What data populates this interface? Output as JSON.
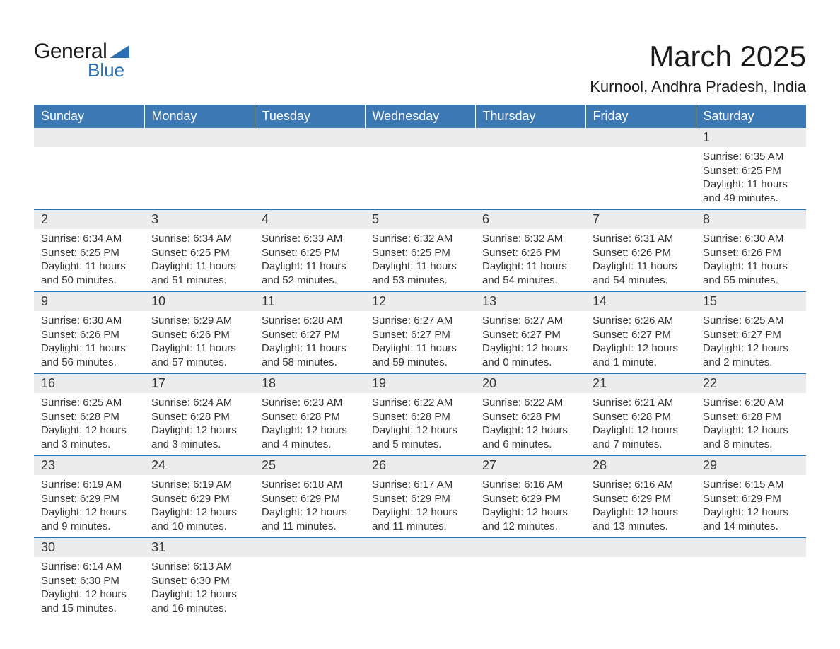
{
  "logo": {
    "general": "General",
    "blue": "Blue",
    "shape_color": "#2b6fb5"
  },
  "title": "March 2025",
  "location": "Kurnool, Andhra Pradesh, India",
  "colors": {
    "header_bg": "#3c78b4",
    "header_text": "#ffffff",
    "daynum_bg": "#ececec",
    "row_border": "#2b6fb5",
    "body_text": "#333333",
    "background": "#ffffff"
  },
  "fonts": {
    "title_size": 42,
    "location_size": 22,
    "header_size": 18,
    "daynum_size": 18,
    "cell_size": 15
  },
  "weekdays": [
    "Sunday",
    "Monday",
    "Tuesday",
    "Wednesday",
    "Thursday",
    "Friday",
    "Saturday"
  ],
  "weeks": [
    [
      null,
      null,
      null,
      null,
      null,
      null,
      {
        "n": "1",
        "sr": "Sunrise: 6:35 AM",
        "ss": "Sunset: 6:25 PM",
        "d1": "Daylight: 11 hours",
        "d2": "and 49 minutes."
      }
    ],
    [
      {
        "n": "2",
        "sr": "Sunrise: 6:34 AM",
        "ss": "Sunset: 6:25 PM",
        "d1": "Daylight: 11 hours",
        "d2": "and 50 minutes."
      },
      {
        "n": "3",
        "sr": "Sunrise: 6:34 AM",
        "ss": "Sunset: 6:25 PM",
        "d1": "Daylight: 11 hours",
        "d2": "and 51 minutes."
      },
      {
        "n": "4",
        "sr": "Sunrise: 6:33 AM",
        "ss": "Sunset: 6:25 PM",
        "d1": "Daylight: 11 hours",
        "d2": "and 52 minutes."
      },
      {
        "n": "5",
        "sr": "Sunrise: 6:32 AM",
        "ss": "Sunset: 6:25 PM",
        "d1": "Daylight: 11 hours",
        "d2": "and 53 minutes."
      },
      {
        "n": "6",
        "sr": "Sunrise: 6:32 AM",
        "ss": "Sunset: 6:26 PM",
        "d1": "Daylight: 11 hours",
        "d2": "and 54 minutes."
      },
      {
        "n": "7",
        "sr": "Sunrise: 6:31 AM",
        "ss": "Sunset: 6:26 PM",
        "d1": "Daylight: 11 hours",
        "d2": "and 54 minutes."
      },
      {
        "n": "8",
        "sr": "Sunrise: 6:30 AM",
        "ss": "Sunset: 6:26 PM",
        "d1": "Daylight: 11 hours",
        "d2": "and 55 minutes."
      }
    ],
    [
      {
        "n": "9",
        "sr": "Sunrise: 6:30 AM",
        "ss": "Sunset: 6:26 PM",
        "d1": "Daylight: 11 hours",
        "d2": "and 56 minutes."
      },
      {
        "n": "10",
        "sr": "Sunrise: 6:29 AM",
        "ss": "Sunset: 6:26 PM",
        "d1": "Daylight: 11 hours",
        "d2": "and 57 minutes."
      },
      {
        "n": "11",
        "sr": "Sunrise: 6:28 AM",
        "ss": "Sunset: 6:27 PM",
        "d1": "Daylight: 11 hours",
        "d2": "and 58 minutes."
      },
      {
        "n": "12",
        "sr": "Sunrise: 6:27 AM",
        "ss": "Sunset: 6:27 PM",
        "d1": "Daylight: 11 hours",
        "d2": "and 59 minutes."
      },
      {
        "n": "13",
        "sr": "Sunrise: 6:27 AM",
        "ss": "Sunset: 6:27 PM",
        "d1": "Daylight: 12 hours",
        "d2": "and 0 minutes."
      },
      {
        "n": "14",
        "sr": "Sunrise: 6:26 AM",
        "ss": "Sunset: 6:27 PM",
        "d1": "Daylight: 12 hours",
        "d2": "and 1 minute."
      },
      {
        "n": "15",
        "sr": "Sunrise: 6:25 AM",
        "ss": "Sunset: 6:27 PM",
        "d1": "Daylight: 12 hours",
        "d2": "and 2 minutes."
      }
    ],
    [
      {
        "n": "16",
        "sr": "Sunrise: 6:25 AM",
        "ss": "Sunset: 6:28 PM",
        "d1": "Daylight: 12 hours",
        "d2": "and 3 minutes."
      },
      {
        "n": "17",
        "sr": "Sunrise: 6:24 AM",
        "ss": "Sunset: 6:28 PM",
        "d1": "Daylight: 12 hours",
        "d2": "and 3 minutes."
      },
      {
        "n": "18",
        "sr": "Sunrise: 6:23 AM",
        "ss": "Sunset: 6:28 PM",
        "d1": "Daylight: 12 hours",
        "d2": "and 4 minutes."
      },
      {
        "n": "19",
        "sr": "Sunrise: 6:22 AM",
        "ss": "Sunset: 6:28 PM",
        "d1": "Daylight: 12 hours",
        "d2": "and 5 minutes."
      },
      {
        "n": "20",
        "sr": "Sunrise: 6:22 AM",
        "ss": "Sunset: 6:28 PM",
        "d1": "Daylight: 12 hours",
        "d2": "and 6 minutes."
      },
      {
        "n": "21",
        "sr": "Sunrise: 6:21 AM",
        "ss": "Sunset: 6:28 PM",
        "d1": "Daylight: 12 hours",
        "d2": "and 7 minutes."
      },
      {
        "n": "22",
        "sr": "Sunrise: 6:20 AM",
        "ss": "Sunset: 6:28 PM",
        "d1": "Daylight: 12 hours",
        "d2": "and 8 minutes."
      }
    ],
    [
      {
        "n": "23",
        "sr": "Sunrise: 6:19 AM",
        "ss": "Sunset: 6:29 PM",
        "d1": "Daylight: 12 hours",
        "d2": "and 9 minutes."
      },
      {
        "n": "24",
        "sr": "Sunrise: 6:19 AM",
        "ss": "Sunset: 6:29 PM",
        "d1": "Daylight: 12 hours",
        "d2": "and 10 minutes."
      },
      {
        "n": "25",
        "sr": "Sunrise: 6:18 AM",
        "ss": "Sunset: 6:29 PM",
        "d1": "Daylight: 12 hours",
        "d2": "and 11 minutes."
      },
      {
        "n": "26",
        "sr": "Sunrise: 6:17 AM",
        "ss": "Sunset: 6:29 PM",
        "d1": "Daylight: 12 hours",
        "d2": "and 11 minutes."
      },
      {
        "n": "27",
        "sr": "Sunrise: 6:16 AM",
        "ss": "Sunset: 6:29 PM",
        "d1": "Daylight: 12 hours",
        "d2": "and 12 minutes."
      },
      {
        "n": "28",
        "sr": "Sunrise: 6:16 AM",
        "ss": "Sunset: 6:29 PM",
        "d1": "Daylight: 12 hours",
        "d2": "and 13 minutes."
      },
      {
        "n": "29",
        "sr": "Sunrise: 6:15 AM",
        "ss": "Sunset: 6:29 PM",
        "d1": "Daylight: 12 hours",
        "d2": "and 14 minutes."
      }
    ],
    [
      {
        "n": "30",
        "sr": "Sunrise: 6:14 AM",
        "ss": "Sunset: 6:30 PM",
        "d1": "Daylight: 12 hours",
        "d2": "and 15 minutes."
      },
      {
        "n": "31",
        "sr": "Sunrise: 6:13 AM",
        "ss": "Sunset: 6:30 PM",
        "d1": "Daylight: 12 hours",
        "d2": "and 16 minutes."
      },
      null,
      null,
      null,
      null,
      null
    ]
  ]
}
